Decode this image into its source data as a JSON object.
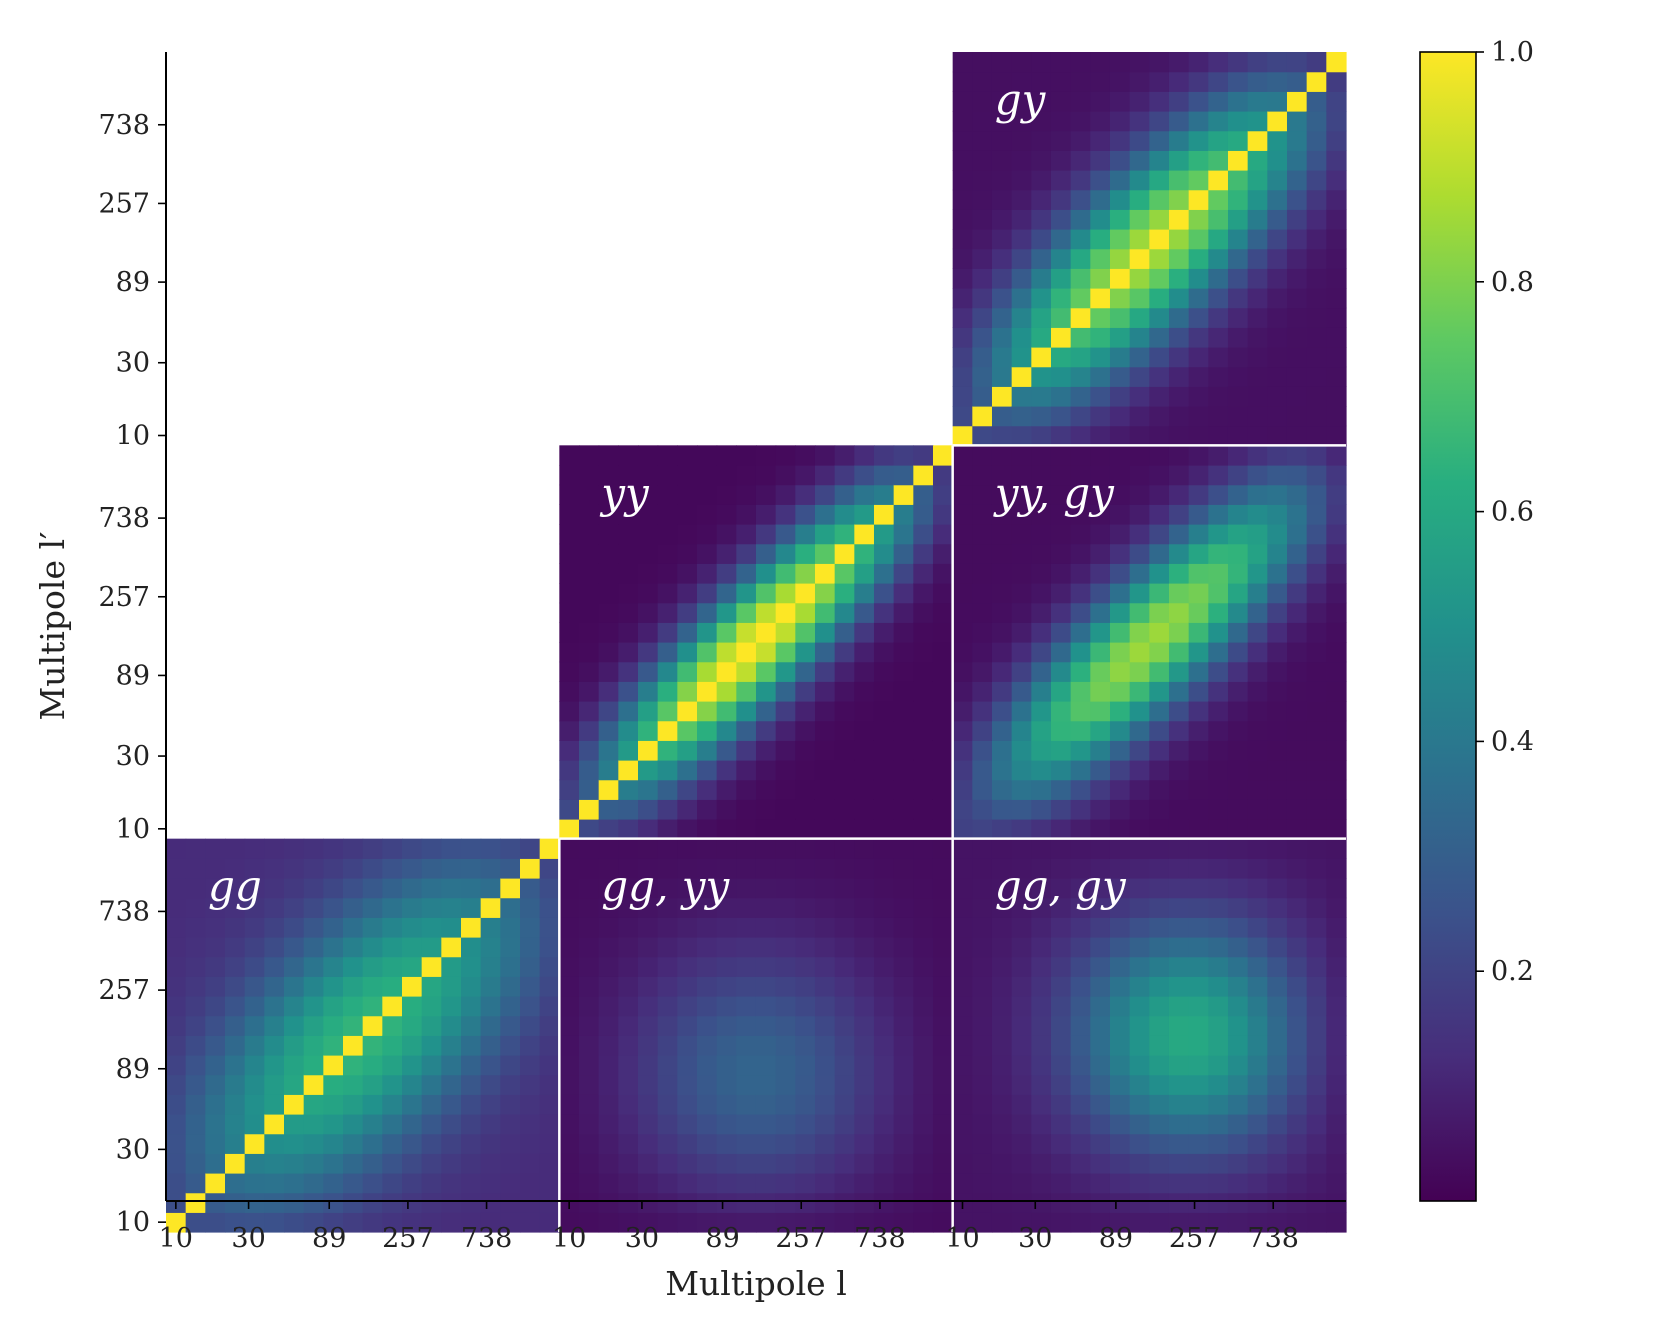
{
  "chart_data": {
    "type": "heatmap",
    "title": "",
    "xlabel": "Multipole l",
    "ylabel": "Multipole l′",
    "n_bins": 20,
    "block_tick_labels": [
      "10",
      "30",
      "89",
      "257",
      "738"
    ],
    "block_tick_bins": [
      0.5,
      4.2,
      8.3,
      12.3,
      16.3
    ],
    "colorbar": {
      "colormap": "viridis",
      "range": [
        0.0,
        1.0
      ],
      "ticks": [
        "0.2",
        "0.4",
        "0.6",
        "0.8",
        "1.0"
      ],
      "tick_values": [
        0.2,
        0.4,
        0.6,
        0.8,
        1.0
      ]
    },
    "panels": [
      {
        "label": "gg",
        "row": 0,
        "col": 0,
        "kind": "auto",
        "peak": 0.66,
        "width": 0.55,
        "base": 0.12,
        "diag": 1.0
      },
      {
        "label": "gg, yy",
        "row": 0,
        "col": 1,
        "kind": "cross",
        "peak": 0.33,
        "center": 0.5,
        "spread": 0.6,
        "base": 0.03
      },
      {
        "label": "gg, gy",
        "row": 0,
        "col": 2,
        "kind": "cross",
        "peak": 0.62,
        "center": 0.62,
        "spread": 0.55,
        "base": 0.05
      },
      {
        "label": "yy",
        "row": 1,
        "col": 1,
        "kind": "auto",
        "peak": 0.98,
        "width": 0.28,
        "base": 0.02,
        "diag": 1.0
      },
      {
        "label": "yy, gy",
        "row": 1,
        "col": 2,
        "kind": "auto",
        "peak": 0.85,
        "width": 0.32,
        "base": 0.03,
        "diag": null
      },
      {
        "label": "gy",
        "row": 2,
        "col": 2,
        "kind": "auto",
        "peak": 0.88,
        "width": 0.38,
        "base": 0.04,
        "diag": 1.0
      }
    ]
  }
}
